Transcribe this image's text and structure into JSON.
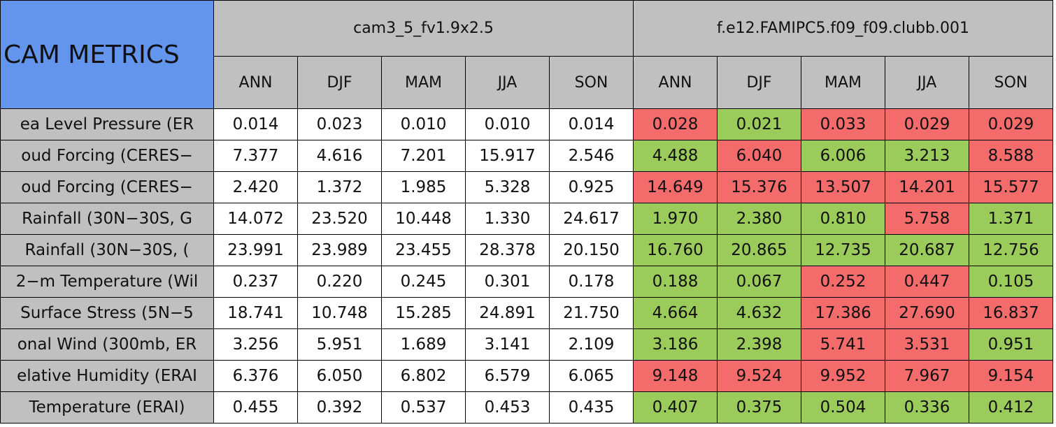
{
  "header": {
    "title": "CAM METRICS",
    "groups": [
      "cam3_5_fv1.9x2.5",
      "f.e12.FAMIPC5.f09_f09.clubb.001"
    ],
    "seasons": [
      "ANN",
      "DJF",
      "MAM",
      "JJA",
      "SON"
    ]
  },
  "table": {
    "rows": [
      {
        "label": "ea Level Pressure (ER",
        "values": [
          "0.014",
          "0.023",
          "0.010",
          "0.010",
          "0.014",
          "0.028",
          "0.021",
          "0.033",
          "0.029",
          "0.029"
        ],
        "colors": [
          "#f46b6b",
          "#9bcb5b",
          "#f46b6b",
          "#f46b6b",
          "#f46b6b"
        ]
      },
      {
        "label": "oud Forcing (CERES−",
        "values": [
          "7.377",
          "4.616",
          "7.201",
          "15.917",
          "2.546",
          "4.488",
          "6.040",
          "6.006",
          "3.213",
          "8.588"
        ],
        "colors": [
          "#9bcb5b",
          "#f46b6b",
          "#9bcb5b",
          "#9bcb5b",
          "#f46b6b"
        ]
      },
      {
        "label": "oud Forcing (CERES−",
        "values": [
          "2.420",
          "1.372",
          "1.985",
          "5.328",
          "0.925",
          "14.649",
          "15.376",
          "13.507",
          "14.201",
          "15.577"
        ],
        "colors": [
          "#f46b6b",
          "#f46b6b",
          "#f46b6b",
          "#f46b6b",
          "#f46b6b"
        ]
      },
      {
        "label": "Rainfall (30N−30S, G",
        "values": [
          "14.072",
          "23.520",
          "10.448",
          "1.330",
          "24.617",
          "1.970",
          "2.380",
          "0.810",
          "5.758",
          "1.371"
        ],
        "colors": [
          "#9bcb5b",
          "#9bcb5b",
          "#9bcb5b",
          "#f46b6b",
          "#9bcb5b"
        ]
      },
      {
        "label": "Rainfall (30N−30S, (",
        "values": [
          "23.991",
          "23.989",
          "23.455",
          "28.378",
          "20.150",
          "16.760",
          "20.865",
          "12.735",
          "20.687",
          "12.756"
        ],
        "colors": [
          "#9bcb5b",
          "#9bcb5b",
          "#9bcb5b",
          "#9bcb5b",
          "#9bcb5b"
        ]
      },
      {
        "label": "2−m Temperature (Wil",
        "values": [
          "0.237",
          "0.220",
          "0.245",
          "0.301",
          "0.178",
          "0.188",
          "0.067",
          "0.252",
          "0.447",
          "0.105"
        ],
        "colors": [
          "#9bcb5b",
          "#9bcb5b",
          "#f46b6b",
          "#f46b6b",
          "#9bcb5b"
        ]
      },
      {
        "label": "Surface Stress (5N−5",
        "values": [
          "18.741",
          "10.748",
          "15.285",
          "24.891",
          "21.750",
          "4.664",
          "4.632",
          "17.386",
          "27.690",
          "16.837"
        ],
        "colors": [
          "#9bcb5b",
          "#9bcb5b",
          "#f46b6b",
          "#f46b6b",
          "#f46b6b"
        ]
      },
      {
        "label": "onal Wind (300mb, ER",
        "values": [
          "3.256",
          "5.951",
          "1.689",
          "3.141",
          "2.109",
          "3.186",
          "2.398",
          "5.741",
          "3.531",
          "0.951"
        ],
        "colors": [
          "#9bcb5b",
          "#9bcb5b",
          "#f46b6b",
          "#f46b6b",
          "#9bcb5b"
        ]
      },
      {
        "label": "elative Humidity (ERAI",
        "values": [
          "6.376",
          "6.050",
          "6.802",
          "6.579",
          "6.065",
          "9.148",
          "9.524",
          "9.952",
          "7.967",
          "9.154"
        ],
        "colors": [
          "#f46b6b",
          "#f46b6b",
          "#f46b6b",
          "#f46b6b",
          "#f46b6b"
        ]
      },
      {
        "label": "Temperature (ERAI)",
        "values": [
          "0.455",
          "0.392",
          "0.537",
          "0.453",
          "0.435",
          "0.407",
          "0.375",
          "0.504",
          "0.336",
          "0.412"
        ],
        "colors": [
          "#9bcb5b",
          "#9bcb5b",
          "#9bcb5b",
          "#9bcb5b",
          "#9bcb5b"
        ]
      }
    ]
  }
}
